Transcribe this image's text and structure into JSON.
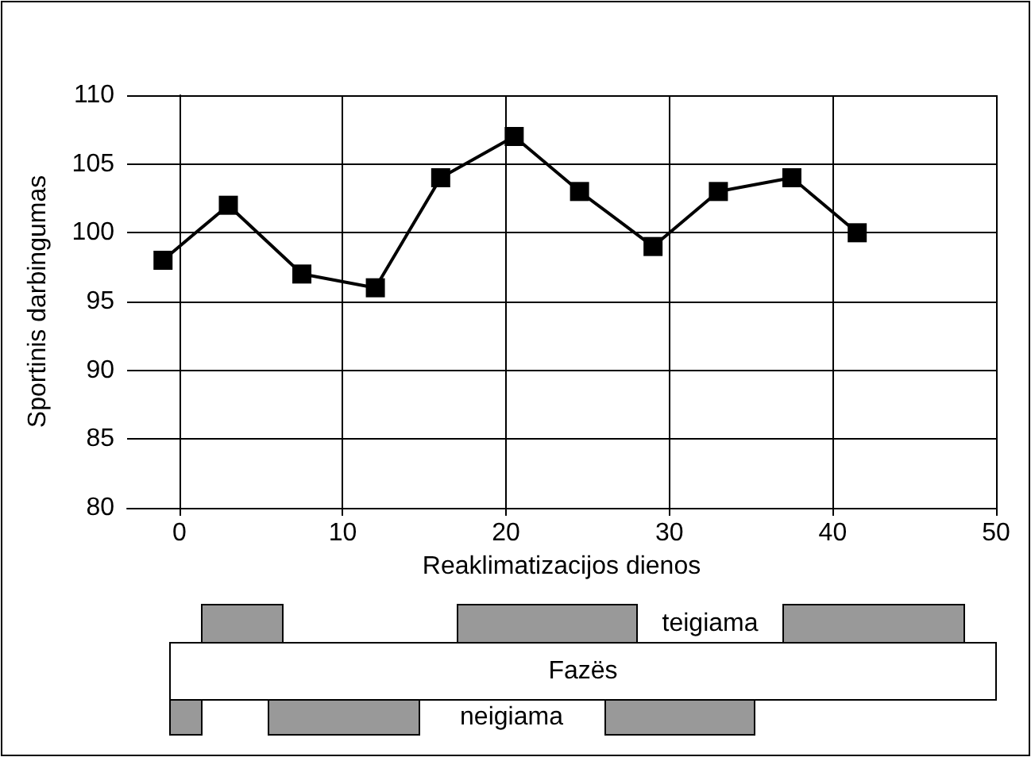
{
  "chart_data": {
    "type": "line",
    "xlabel": "Reaklimatizacijos dienos",
    "ylabel": "Sportinis darbingumas",
    "x": [
      -1,
      3,
      7.5,
      12,
      16,
      20.5,
      24.5,
      29,
      33,
      37.5,
      41.5
    ],
    "values": [
      98,
      102,
      97,
      96,
      104,
      107,
      103,
      99,
      103,
      104,
      100
    ],
    "color": "#000000",
    "marker": "square",
    "line_style": "solid",
    "xlim": [
      -3.2,
      50
    ],
    "xticks": [
      0,
      10,
      20,
      30,
      40,
      50
    ],
    "ylim": [
      80,
      110
    ],
    "yticks": [
      80,
      85,
      90,
      95,
      100,
      105,
      110
    ],
    "grid": true,
    "annotations": [
      "teigiama",
      "Fazës",
      "neigiama"
    ]
  }
}
